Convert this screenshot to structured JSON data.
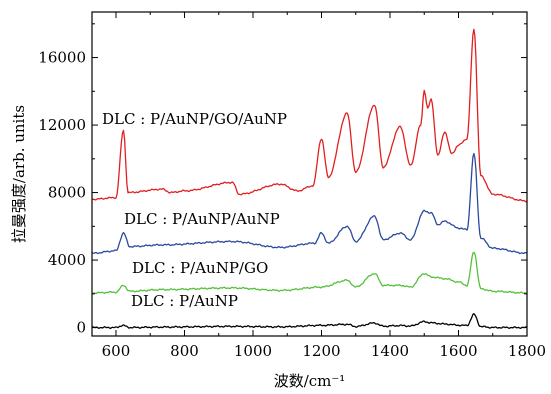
{
  "chart_data": {
    "type": "line",
    "title": "",
    "xlabel": "波数/cm⁻¹",
    "ylabel": "拉曼强度/arb. units",
    "xlim": [
      530,
      1800
    ],
    "ylim": [
      -500,
      18700
    ],
    "xticks": [
      600,
      800,
      1000,
      1200,
      1400,
      1600,
      1800
    ],
    "yticks": [
      0,
      4000,
      8000,
      12000,
      16000
    ],
    "grid": false,
    "legend": "none",
    "series": [
      {
        "name": "DLC : P/AuNP",
        "color": "#000000",
        "baseline": 0,
        "points": [
          [
            530,
            0
          ],
          [
            600,
            0
          ],
          [
            620,
            130
          ],
          [
            640,
            0
          ],
          [
            735,
            30
          ],
          [
            940,
            70
          ],
          [
            1080,
            40
          ],
          [
            1200,
            130
          ],
          [
            1275,
            190
          ],
          [
            1300,
            60
          ],
          [
            1355,
            270
          ],
          [
            1380,
            80
          ],
          [
            1430,
            120
          ],
          [
            1460,
            90
          ],
          [
            1500,
            350
          ],
          [
            1520,
            280
          ],
          [
            1560,
            210
          ],
          [
            1600,
            140
          ],
          [
            1625,
            120
          ],
          [
            1645,
            780
          ],
          [
            1665,
            60
          ],
          [
            1700,
            0
          ],
          [
            1800,
            0
          ]
        ]
      },
      {
        "name": "DLC : P/AuNP/GO",
        "color": "#55c03c",
        "baseline": 2050,
        "points": [
          [
            530,
            2050
          ],
          [
            600,
            2100
          ],
          [
            622,
            2500
          ],
          [
            640,
            2150
          ],
          [
            735,
            2250
          ],
          [
            940,
            2350
          ],
          [
            1080,
            2200
          ],
          [
            1200,
            2400
          ],
          [
            1275,
            2800
          ],
          [
            1300,
            2400
          ],
          [
            1355,
            3200
          ],
          [
            1380,
            2500
          ],
          [
            1430,
            2500
          ],
          [
            1460,
            2400
          ],
          [
            1500,
            3200
          ],
          [
            1520,
            3000
          ],
          [
            1560,
            2900
          ],
          [
            1600,
            2700
          ],
          [
            1625,
            2500
          ],
          [
            1645,
            4500
          ],
          [
            1665,
            2300
          ],
          [
            1700,
            2150
          ],
          [
            1800,
            2050
          ]
        ]
      },
      {
        "name": "DLC : P/AuNP/AuNP",
        "color": "#2b4a9e",
        "baseline": 4400,
        "points": [
          [
            530,
            4400
          ],
          [
            600,
            4550
          ],
          [
            622,
            5600
          ],
          [
            640,
            4800
          ],
          [
            735,
            4900
          ],
          [
            940,
            5100
          ],
          [
            1080,
            4750
          ],
          [
            1180,
            5000
          ],
          [
            1200,
            5600
          ],
          [
            1220,
            5000
          ],
          [
            1275,
            6000
          ],
          [
            1300,
            5100
          ],
          [
            1355,
            6600
          ],
          [
            1380,
            5200
          ],
          [
            1430,
            5600
          ],
          [
            1460,
            5200
          ],
          [
            1500,
            6900
          ],
          [
            1520,
            6800
          ],
          [
            1540,
            6100
          ],
          [
            1560,
            6300
          ],
          [
            1600,
            5900
          ],
          [
            1625,
            5800
          ],
          [
            1645,
            10300
          ],
          [
            1665,
            5300
          ],
          [
            1700,
            4700
          ],
          [
            1800,
            4400
          ]
        ]
      },
      {
        "name": "DLC : P/AuNP/GO/AuNP",
        "color": "#e02020",
        "baseline": 7600,
        "points": [
          [
            530,
            7600
          ],
          [
            600,
            7700
          ],
          [
            622,
            11700
          ],
          [
            635,
            8000
          ],
          [
            735,
            8200
          ],
          [
            760,
            8000
          ],
          [
            800,
            8100
          ],
          [
            940,
            8600
          ],
          [
            960,
            7900
          ],
          [
            1080,
            8500
          ],
          [
            1130,
            8100
          ],
          [
            1175,
            8400
          ],
          [
            1200,
            11200
          ],
          [
            1220,
            8900
          ],
          [
            1275,
            12700
          ],
          [
            1300,
            9200
          ],
          [
            1355,
            13200
          ],
          [
            1380,
            9500
          ],
          [
            1430,
            11900
          ],
          [
            1460,
            9600
          ],
          [
            1490,
            12000
          ],
          [
            1500,
            14100
          ],
          [
            1510,
            13000
          ],
          [
            1520,
            13500
          ],
          [
            1540,
            10200
          ],
          [
            1560,
            11600
          ],
          [
            1580,
            10300
          ],
          [
            1600,
            10800
          ],
          [
            1625,
            11200
          ],
          [
            1645,
            17700
          ],
          [
            1665,
            9000
          ],
          [
            1700,
            7900
          ],
          [
            1800,
            7500
          ]
        ]
      }
    ],
    "annotations": [
      "DLC : P/AuNP/GO/AuNP",
      "DLC : P/AuNP/AuNP",
      "DLC : P/AuNP/GO",
      "DLC : P/AuNP"
    ]
  }
}
